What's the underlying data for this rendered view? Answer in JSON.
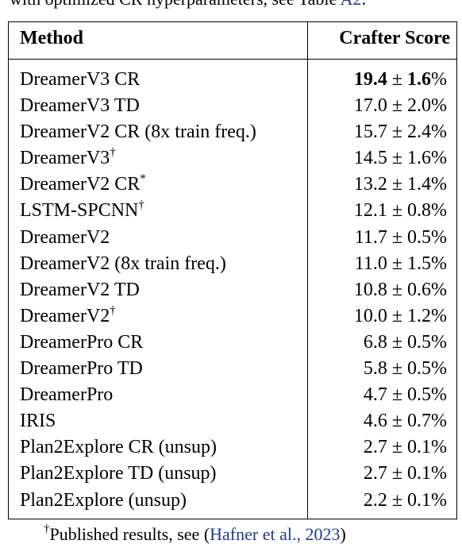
{
  "top_caption": {
    "text": "with optimized CR hyperparameters, see Table ",
    "ref": "A2",
    "end": "."
  },
  "table": {
    "headers": {
      "method": "Method",
      "score": "Crafter Score"
    },
    "rows": [
      {
        "method": "DreamerV3 CR",
        "sup": "",
        "mean": "19.4",
        "pm": " ± ",
        "std": "1.6",
        "unit": "%",
        "best": true
      },
      {
        "method": "DreamerV3 TD",
        "sup": "",
        "mean": "17.0",
        "pm": " ± ",
        "std": "2.0",
        "unit": "%",
        "best": false
      },
      {
        "method": "DreamerV2 CR (8x train freq.)",
        "sup": "",
        "mean": "15.7",
        "pm": " ± ",
        "std": "2.4",
        "unit": "%",
        "best": false
      },
      {
        "method": "DreamerV3",
        "sup": "†",
        "mean": "14.5",
        "pm": " ± ",
        "std": "1.6",
        "unit": "%",
        "best": false
      },
      {
        "method": "DreamerV2 CR",
        "sup": "*",
        "mean": "13.2",
        "pm": " ± ",
        "std": "1.4",
        "unit": "%",
        "best": false
      },
      {
        "method": "LSTM-SPCNN",
        "sup": "†",
        "mean": "12.1",
        "pm": " ± ",
        "std": "0.8",
        "unit": "%",
        "best": false
      },
      {
        "method": "DreamerV2",
        "sup": "",
        "mean": "11.7",
        "pm": " ± ",
        "std": "0.5",
        "unit": "%",
        "best": false
      },
      {
        "method": "DreamerV2 (8x train freq.)",
        "sup": "",
        "mean": "11.0",
        "pm": " ± ",
        "std": "1.5",
        "unit": "%",
        "best": false
      },
      {
        "method": "DreamerV2 TD",
        "sup": "",
        "mean": "10.8",
        "pm": " ± ",
        "std": "0.6",
        "unit": "%",
        "best": false
      },
      {
        "method": "DreamerV2",
        "sup": "†",
        "mean": "10.0",
        "pm": " ± ",
        "std": "1.2",
        "unit": "%",
        "best": false
      },
      {
        "method": "DreamerPro CR",
        "sup": "",
        "mean": "6.8",
        "pm": " ± ",
        "std": "0.5",
        "unit": "%",
        "best": false
      },
      {
        "method": "DreamerPro TD",
        "sup": "",
        "mean": "5.8",
        "pm": " ± ",
        "std": "0.5",
        "unit": "%",
        "best": false
      },
      {
        "method": "DreamerPro",
        "sup": "",
        "mean": "4.7",
        "pm": " ± ",
        "std": "0.5",
        "unit": "%",
        "best": false
      },
      {
        "method": "IRIS",
        "sup": "",
        "mean": "4.6",
        "pm": " ± ",
        "std": "0.7",
        "unit": "%",
        "best": false
      },
      {
        "method": "Plan2Explore CR (unsup)",
        "sup": "",
        "mean": "2.7",
        "pm": " ± ",
        "std": "0.1",
        "unit": "%",
        "best": false
      },
      {
        "method": "Plan2Explore TD (unsup)",
        "sup": "",
        "mean": "2.7",
        "pm": " ± ",
        "std": "0.1",
        "unit": "%",
        "best": false
      },
      {
        "method": "Plan2Explore (unsup)",
        "sup": "",
        "mean": "2.2",
        "pm": " ± ",
        "std": "0.1",
        "unit": "%",
        "best": false
      }
    ]
  },
  "footnote": {
    "mark": "†",
    "text": "Published results, see (",
    "cite": "Hafner et al., 2023",
    "end": ")"
  },
  "colors": {
    "link": "#1f3a93",
    "text": "#000000"
  }
}
